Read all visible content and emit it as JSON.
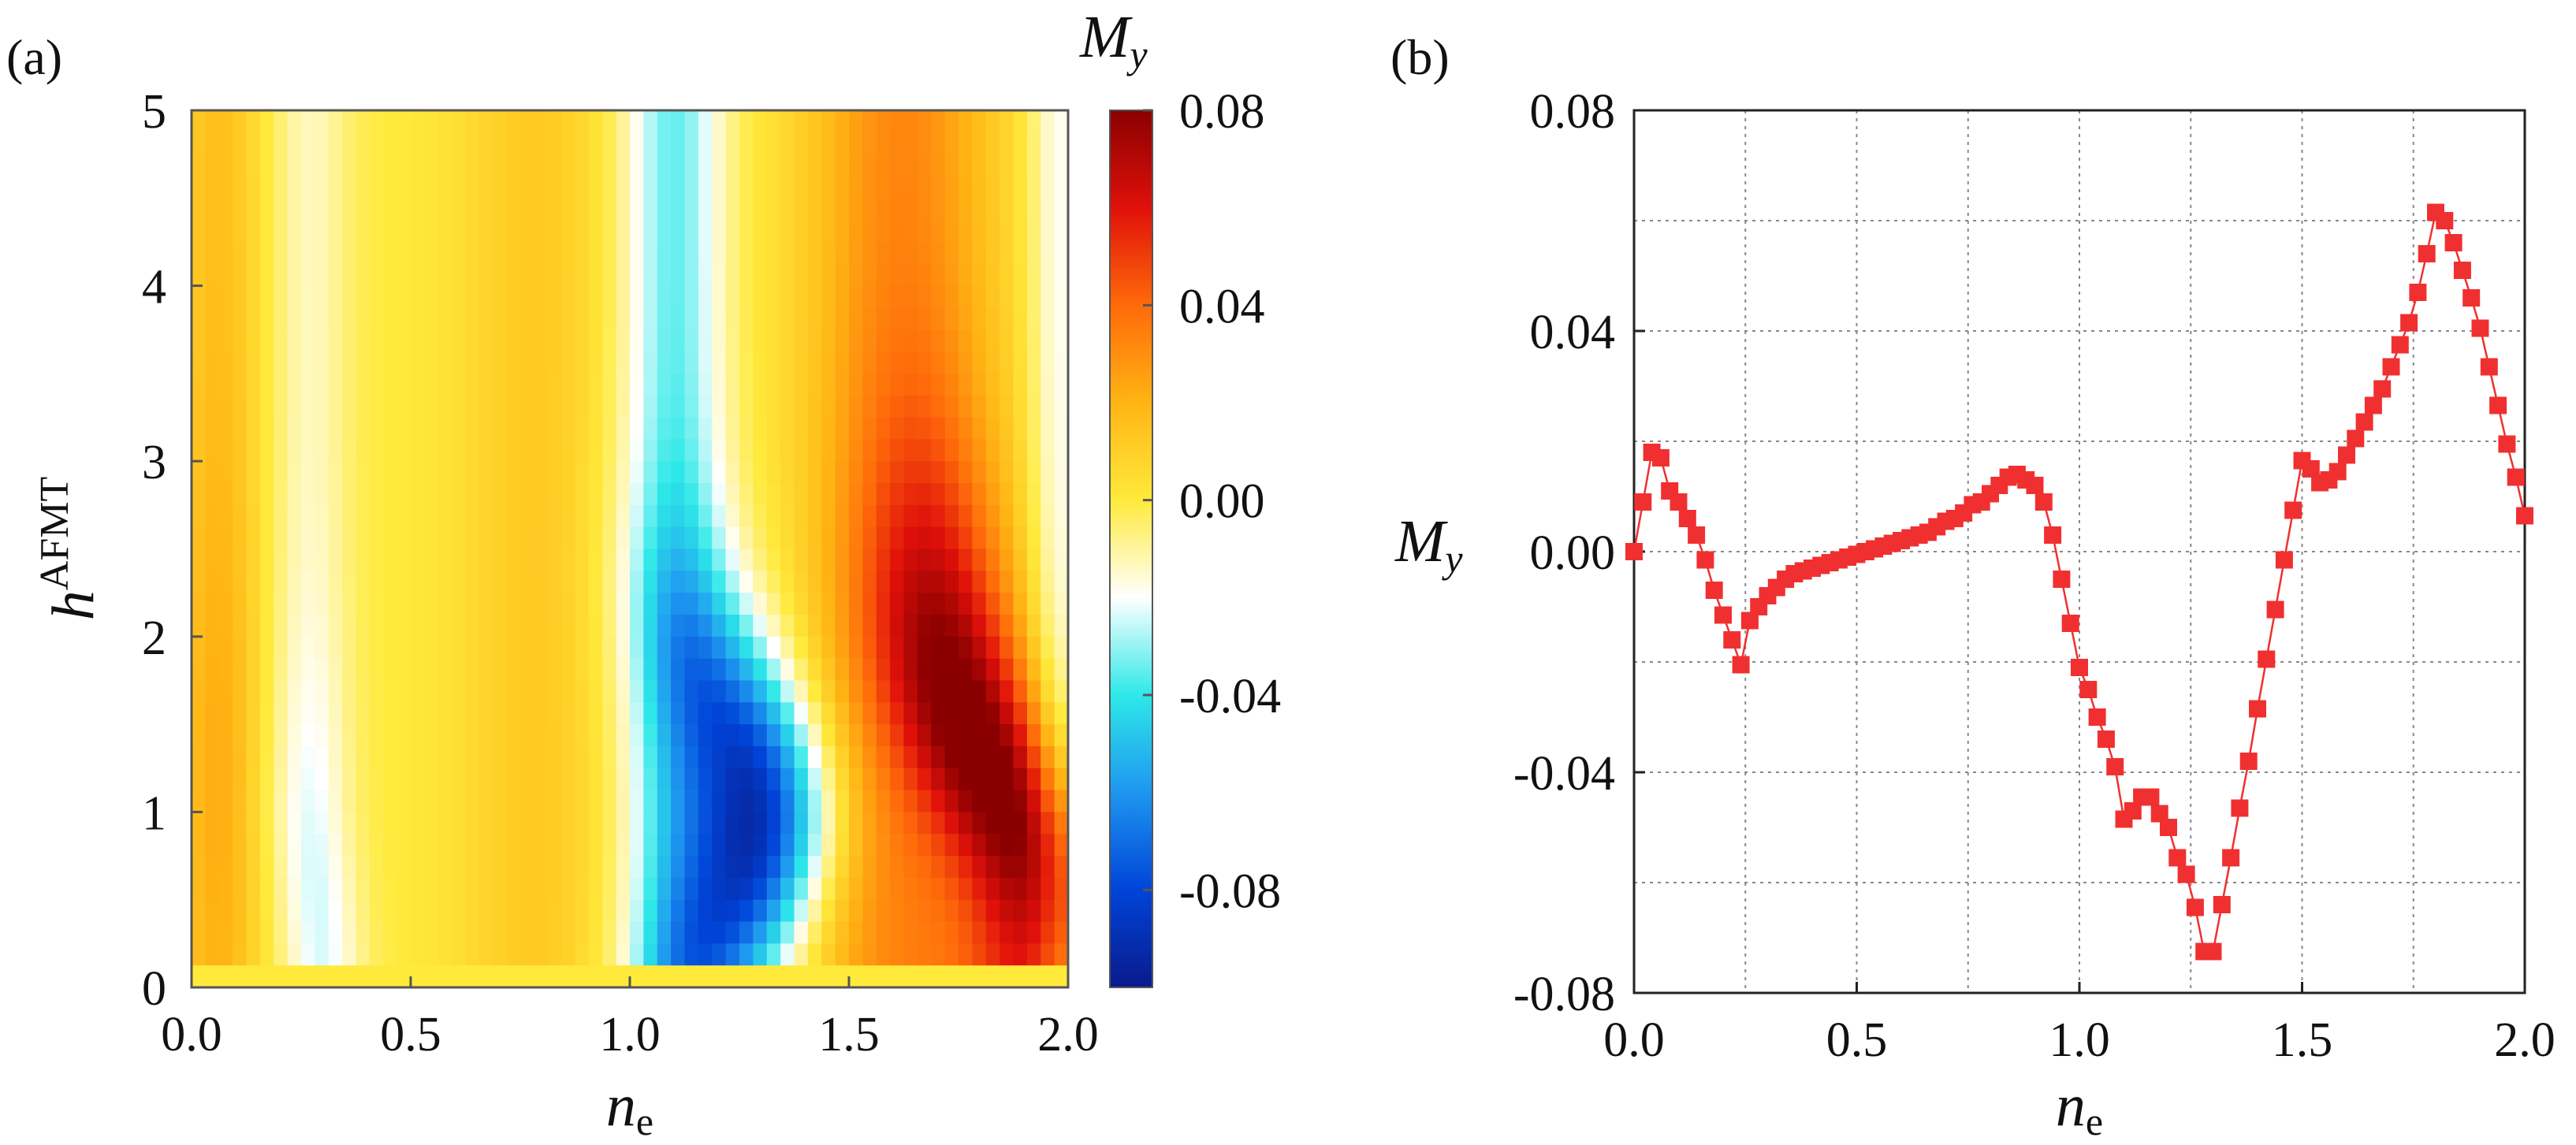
{
  "chart_data": [
    {
      "type": "heatmap",
      "panel_label": "(a)",
      "xlabel": "n",
      "xlabel_sub": "e",
      "ylabel": "h",
      "ylabel_sup": "AFMT",
      "xlim": [
        0.0,
        2.0
      ],
      "ylim": [
        0,
        5
      ],
      "xticks": [
        "0.0",
        "0.5",
        "1.0",
        "1.5",
        "2.0"
      ],
      "yticks": [
        "0",
        "1",
        "2",
        "3",
        "4",
        "5"
      ],
      "colorbar": {
        "label": "M",
        "label_sub": "y",
        "range": [
          -0.1,
          0.08
        ],
        "ticks": [
          "0.08",
          "0.04",
          "0.00",
          "-0.04",
          "-0.08"
        ],
        "colors": [
          "#0a1a8c",
          "#0044d8",
          "#1e96f0",
          "#2ee8e8",
          "#ffffff",
          "#ffea3c",
          "#ffb414",
          "#ff6a0a",
          "#e0100a",
          "#8a0000"
        ]
      }
    },
    {
      "type": "line",
      "panel_label": "(b)",
      "xlabel": "n",
      "xlabel_sub": "e",
      "ylabel": "M",
      "ylabel_sub": "y",
      "xlim": [
        0.0,
        2.0
      ],
      "ylim": [
        -0.08,
        0.08
      ],
      "xticks": [
        "0.0",
        "0.5",
        "1.0",
        "1.5",
        "2.0"
      ],
      "yticks": [
        "0.08",
        "0.04",
        "0.00",
        "-0.04",
        "-0.08"
      ],
      "grid": true,
      "series": [
        {
          "name": "My",
          "color": "#f03030",
          "marker": "square",
          "x": [
            0.0,
            0.02,
            0.04,
            0.06,
            0.08,
            0.1,
            0.12,
            0.14,
            0.16,
            0.18,
            0.2,
            0.22,
            0.24,
            0.26,
            0.28,
            0.3,
            0.32,
            0.34,
            0.36,
            0.38,
            0.4,
            0.42,
            0.44,
            0.46,
            0.48,
            0.5,
            0.52,
            0.54,
            0.56,
            0.58,
            0.6,
            0.62,
            0.64,
            0.66,
            0.68,
            0.7,
            0.72,
            0.74,
            0.76,
            0.78,
            0.8,
            0.82,
            0.84,
            0.86,
            0.88,
            0.9,
            0.92,
            0.94,
            0.96,
            0.98,
            1.0,
            1.02,
            1.04,
            1.06,
            1.08,
            1.1,
            1.12,
            1.14,
            1.16,
            1.18,
            1.2,
            1.22,
            1.24,
            1.26,
            1.28,
            1.3,
            1.32,
            1.34,
            1.36,
            1.38,
            1.4,
            1.42,
            1.44,
            1.46,
            1.48,
            1.5,
            1.52,
            1.54,
            1.56,
            1.58,
            1.6,
            1.62,
            1.64,
            1.66,
            1.68,
            1.7,
            1.72,
            1.74,
            1.76,
            1.78,
            1.8,
            1.82,
            1.84,
            1.86,
            1.88,
            1.9,
            1.92,
            1.94,
            1.96,
            1.98,
            2.0
          ],
          "y": [
            0.0,
            0.009,
            0.018,
            0.017,
            0.011,
            0.009,
            0.006,
            0.003,
            -0.0015,
            -0.007,
            -0.0115,
            -0.016,
            -0.0205,
            -0.0125,
            -0.01,
            -0.008,
            -0.0065,
            -0.005,
            -0.004,
            -0.0035,
            -0.003,
            -0.0025,
            -0.002,
            -0.0015,
            -0.001,
            -0.0005,
            0.0,
            0.0005,
            0.001,
            0.0015,
            0.002,
            0.0025,
            0.003,
            0.0035,
            0.0045,
            0.0055,
            0.006,
            0.007,
            0.0085,
            0.009,
            0.0105,
            0.012,
            0.0135,
            0.014,
            0.013,
            0.012,
            0.009,
            0.003,
            -0.005,
            -0.013,
            -0.021,
            -0.025,
            -0.03,
            -0.034,
            -0.039,
            -0.0485,
            -0.047,
            -0.0445,
            -0.0445,
            -0.0475,
            -0.05,
            -0.0555,
            -0.0585,
            -0.0645,
            -0.0725,
            -0.0725,
            -0.064,
            -0.0555,
            -0.0465,
            -0.038,
            -0.0285,
            -0.0195,
            -0.0105,
            -0.0015,
            0.0075,
            0.0165,
            0.015,
            0.0125,
            0.013,
            0.0145,
            0.0175,
            0.0205,
            0.0235,
            0.0265,
            0.0295,
            0.0335,
            0.0375,
            0.0415,
            0.047,
            0.054,
            0.0615,
            0.06,
            0.056,
            0.051,
            0.046,
            0.0405,
            0.0335,
            0.0265,
            0.0195,
            0.0135,
            0.0065
          ]
        }
      ]
    }
  ]
}
